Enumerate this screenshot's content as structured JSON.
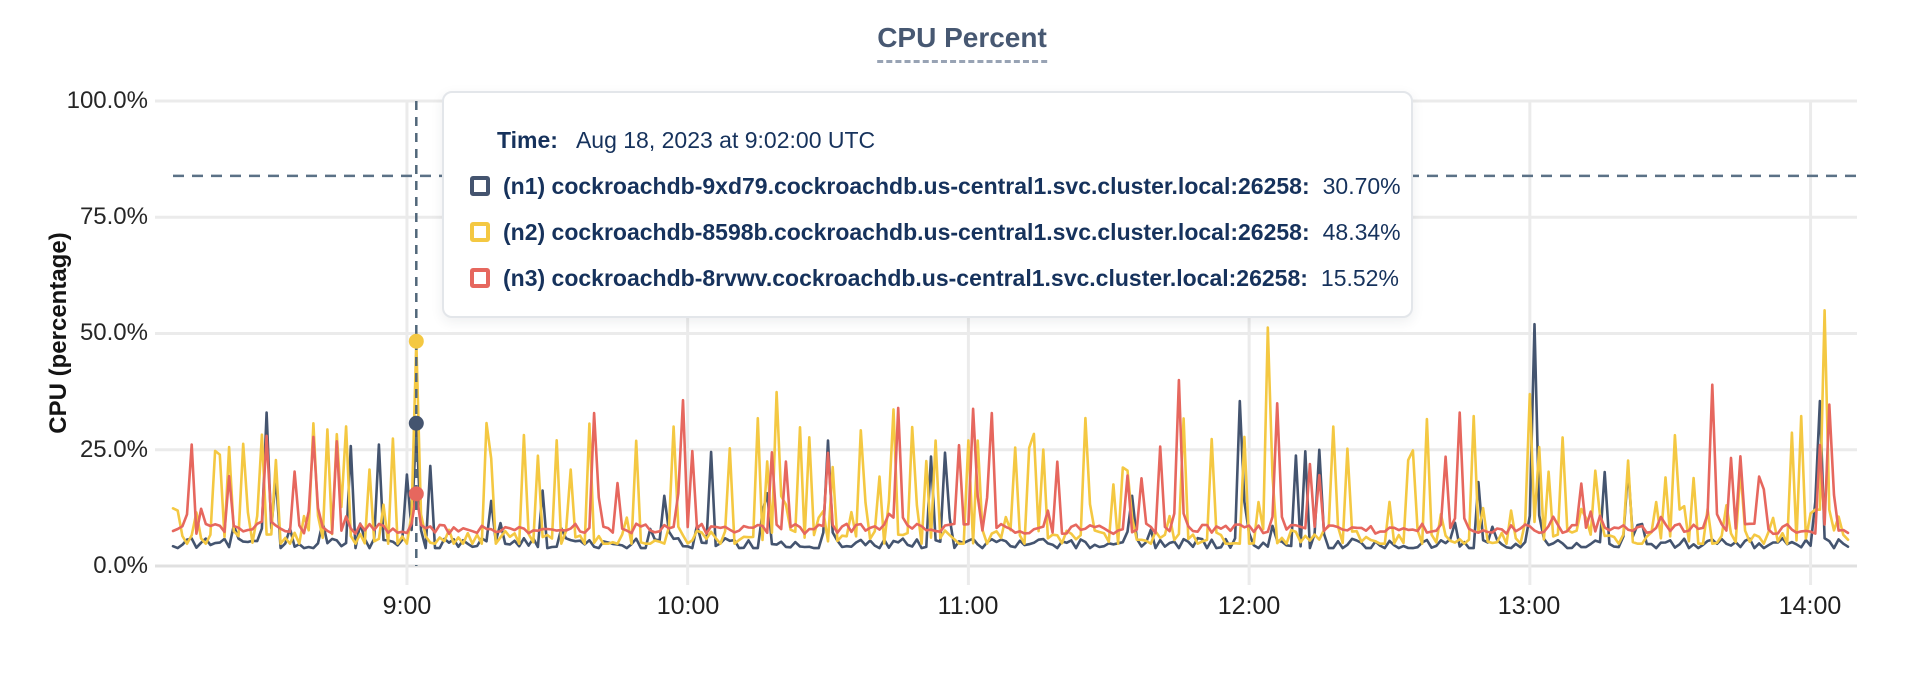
{
  "title": {
    "text": "CPU Percent"
  },
  "y_axis": {
    "label": "CPU (percentage)",
    "ticks": [
      "100.0%",
      "75.0%",
      "50.0%",
      "25.0%",
      "0.0%"
    ]
  },
  "x_axis": {
    "ticks": [
      "9:00",
      "10:00",
      "11:00",
      "12:00",
      "13:00",
      "14:00"
    ]
  },
  "tooltip": {
    "time_label": "Time:",
    "time_value": "Aug 18, 2023 at 9:02:00 UTC",
    "rows": [
      {
        "name": "(n1) cockroachdb-9xd79.cockroachdb.us-central1.svc.cluster.local:26258:",
        "value": "30.70%",
        "color": "#44546f"
      },
      {
        "name": "(n2) cockroachdb-8598b.cockroachdb.us-central1.svc.cluster.local:26258:",
        "value": "48.34%",
        "color": "#f4c842"
      },
      {
        "name": "(n3) cockroachdb-8rvwv.cockroachdb.us-central1.svc.cluster.local:26258:",
        "value": "15.52%",
        "color": "#e6675e"
      }
    ]
  },
  "colors": {
    "grid": "#ebebeb",
    "baseline": "#e0e0e0",
    "threshold_line": "#5b7186",
    "hover_line": "#51677a",
    "title_text": "#475872",
    "tooltip_text": "#16325c"
  },
  "chart_data": {
    "type": "line",
    "title": "CPU Percent",
    "xlabel": "",
    "ylabel": "CPU (percentage)",
    "ylim": [
      0,
      100
    ],
    "y_ticks_pct": [
      100,
      75,
      50,
      25,
      0
    ],
    "x_tick_hours": [
      9,
      10,
      11,
      12,
      13,
      14
    ],
    "time_range_hours": [
      8.16667,
      14.13333
    ],
    "sample_minutes": 1,
    "grid": true,
    "legend_position": "tooltip",
    "threshold_pct": 83.9,
    "hover": {
      "time_hours": 9.03333,
      "time_text": "Aug 18, 2023 at 9:02:00 UTC",
      "values_pct": [
        30.7,
        48.34,
        15.52
      ]
    },
    "series": [
      {
        "id": "n1",
        "name": "(n1) cockroachdb-9xd79.cockroachdb.us-central1.svc.cluster.local:26258",
        "color": "#44546f",
        "seed": 11,
        "base": 4.8,
        "jitter": 1.2,
        "spike_prob": 0.055,
        "spike_min": 7,
        "spike_max": 22,
        "anchors": [
          [
            8.5,
            33
          ],
          [
            9.03333,
            30.7
          ],
          [
            9.3,
            14
          ],
          [
            9.92,
            16
          ],
          [
            10.5,
            27
          ],
          [
            10.92,
            26
          ],
          [
            11.58,
            16
          ],
          [
            11.97,
            38
          ],
          [
            12.25,
            25
          ],
          [
            13.0167,
            52
          ],
          [
            13.35,
            21
          ],
          [
            14.03,
            38
          ]
        ]
      },
      {
        "id": "n2",
        "name": "(n2) cockroachdb-8598b.cockroachdb.us-central1.svc.cluster.local:26258",
        "color": "#f4c842",
        "seed": 22,
        "base": 6.0,
        "jitter": 1.8,
        "spike_prob": 0.17,
        "spike_min": 12,
        "spike_max": 26,
        "anchors": [
          [
            8.42,
            28
          ],
          [
            9.03333,
            48.34
          ],
          [
            9.95,
            30
          ],
          [
            10.32,
            40
          ],
          [
            10.73,
            36
          ],
          [
            11.42,
            34
          ],
          [
            12.07,
            55
          ],
          [
            12.3,
            30
          ],
          [
            13.0,
            37
          ],
          [
            13.52,
            30
          ],
          [
            14.05,
            55
          ]
        ]
      },
      {
        "id": "n3",
        "name": "(n3) cockroachdb-8rvwv.cockroachdb.us-central1.svc.cluster.local:26258",
        "color": "#e6675e",
        "seed": 33,
        "base": 8.0,
        "jitter": 1.1,
        "spike_prob": 0.07,
        "spike_min": 7,
        "spike_max": 20,
        "anchors": [
          [
            8.5,
            28
          ],
          [
            9.03333,
            15.52
          ],
          [
            9.67,
            35
          ],
          [
            9.98,
            38
          ],
          [
            10.75,
            34
          ],
          [
            11.02,
            36
          ],
          [
            11.08,
            35
          ],
          [
            11.75,
            40
          ],
          [
            12.1,
            35
          ],
          [
            12.75,
            33
          ],
          [
            13.65,
            39
          ],
          [
            14.07,
            37
          ]
        ]
      }
    ]
  }
}
